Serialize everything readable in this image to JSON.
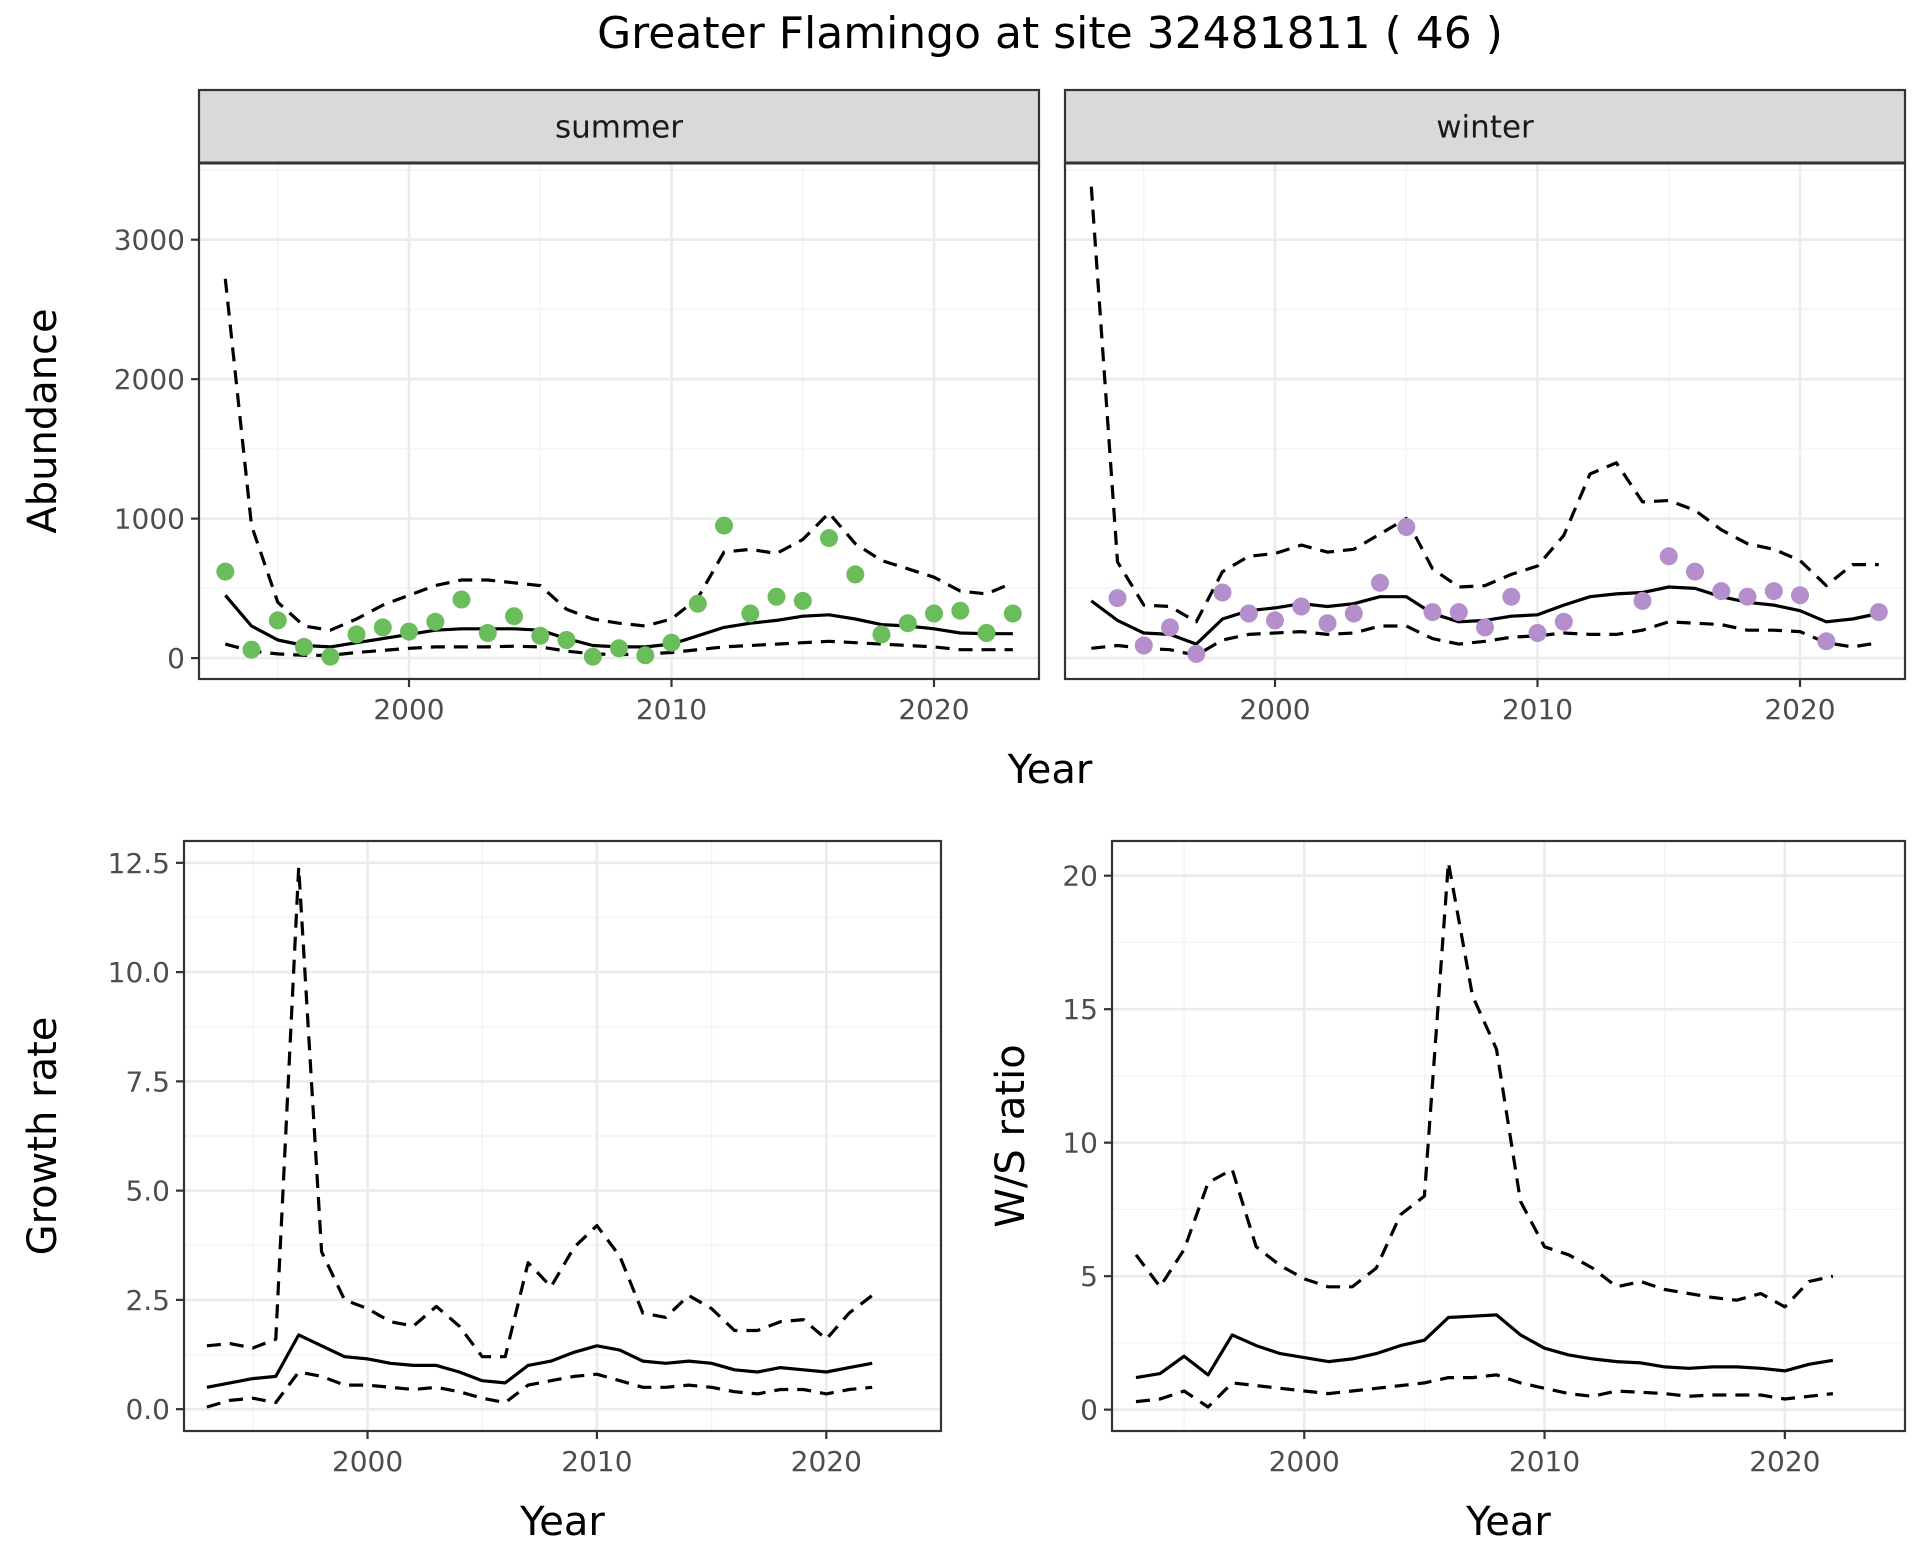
{
  "title": "Greater Flamingo at site 32481811 ( 46 )",
  "colors": {
    "summer": "#6abd5a",
    "winter": "#b48fcb",
    "strip_bg": "#d9d9d9"
  },
  "chart_data": [
    {
      "type": "line",
      "panel": "summer",
      "strip_label": "summer",
      "xlabel": "Year",
      "ylabel": "Abundance",
      "xlim": [
        1992,
        2024
      ],
      "ylim": [
        -150,
        3550
      ],
      "xticks": [
        2000,
        2010,
        2020
      ],
      "yticks": [
        0,
        1000,
        2000,
        3000
      ],
      "x": [
        1993,
        1994,
        1995,
        1996,
        1997,
        1998,
        1999,
        2000,
        2001,
        2002,
        2003,
        2004,
        2005,
        2006,
        2007,
        2008,
        2009,
        2010,
        2011,
        2012,
        2013,
        2014,
        2015,
        2016,
        2017,
        2018,
        2019,
        2020,
        2021,
        2022,
        2023
      ],
      "series": [
        {
          "role": "estimate",
          "values": [
            450,
            230,
            130,
            90,
            80,
            110,
            140,
            170,
            200,
            210,
            210,
            210,
            200,
            140,
            90,
            80,
            80,
            100,
            160,
            220,
            250,
            270,
            300,
            310,
            280,
            240,
            230,
            210,
            180,
            175,
            175
          ]
        },
        {
          "role": "upper",
          "values": [
            2720,
            950,
            400,
            230,
            200,
            280,
            380,
            450,
            520,
            560,
            560,
            540,
            520,
            350,
            280,
            250,
            230,
            280,
            430,
            760,
            780,
            750,
            850,
            1040,
            820,
            700,
            640,
            580,
            480,
            460,
            540
          ]
        },
        {
          "role": "lower",
          "values": [
            100,
            50,
            30,
            20,
            20,
            40,
            55,
            70,
            80,
            80,
            80,
            85,
            80,
            50,
            30,
            25,
            30,
            40,
            60,
            80,
            90,
            100,
            110,
            120,
            110,
            100,
            90,
            80,
            60,
            60,
            60
          ]
        },
        {
          "role": "observed",
          "points": [
            [
              1993,
              620
            ],
            [
              1994,
              60
            ],
            [
              1995,
              270
            ],
            [
              1996,
              80
            ],
            [
              1997,
              10
            ],
            [
              1998,
              170
            ],
            [
              1999,
              220
            ],
            [
              2000,
              190
            ],
            [
              2001,
              260
            ],
            [
              2002,
              420
            ],
            [
              2003,
              180
            ],
            [
              2004,
              300
            ],
            [
              2005,
              160
            ],
            [
              2006,
              130
            ],
            [
              2007,
              10
            ],
            [
              2008,
              70
            ],
            [
              2009,
              20
            ],
            [
              2010,
              110
            ],
            [
              2011,
              390
            ],
            [
              2012,
              950
            ],
            [
              2013,
              320
            ],
            [
              2014,
              440
            ],
            [
              2015,
              410
            ],
            [
              2016,
              860
            ],
            [
              2017,
              600
            ],
            [
              2018,
              170
            ],
            [
              2019,
              250
            ],
            [
              2020,
              320
            ],
            [
              2021,
              340
            ],
            [
              2022,
              180
            ],
            [
              2023,
              320
            ]
          ]
        }
      ]
    },
    {
      "type": "line",
      "panel": "winter",
      "strip_label": "winter",
      "xlabel": "Year",
      "ylabel": "Abundance",
      "xlim": [
        1992,
        2024
      ],
      "ylim": [
        -150,
        3550
      ],
      "xticks": [
        2000,
        2010,
        2020
      ],
      "yticks": [
        0,
        1000,
        2000,
        3000
      ],
      "x": [
        1993,
        1994,
        1995,
        1996,
        1997,
        1998,
        1999,
        2000,
        2001,
        2002,
        2003,
        2004,
        2005,
        2006,
        2007,
        2008,
        2009,
        2010,
        2011,
        2012,
        2013,
        2014,
        2015,
        2016,
        2017,
        2018,
        2019,
        2020,
        2021,
        2022,
        2023
      ],
      "series": [
        {
          "role": "estimate",
          "values": [
            410,
            270,
            180,
            170,
            100,
            280,
            340,
            360,
            390,
            370,
            390,
            440,
            440,
            320,
            260,
            270,
            300,
            310,
            380,
            440,
            460,
            470,
            510,
            500,
            440,
            400,
            380,
            340,
            260,
            280,
            320
          ]
        },
        {
          "role": "upper",
          "values": [
            3380,
            690,
            380,
            370,
            260,
            620,
            730,
            750,
            810,
            760,
            780,
            890,
            1000,
            640,
            510,
            520,
            600,
            660,
            880,
            1320,
            1400,
            1120,
            1130,
            1060,
            920,
            820,
            780,
            700,
            520,
            670,
            670
          ]
        },
        {
          "role": "lower",
          "values": [
            70,
            90,
            70,
            60,
            20,
            130,
            170,
            180,
            190,
            170,
            180,
            230,
            230,
            140,
            100,
            120,
            150,
            160,
            180,
            170,
            170,
            200,
            260,
            250,
            240,
            200,
            200,
            190,
            110,
            80,
            110
          ]
        },
        {
          "role": "observed",
          "points": [
            [
              1994,
              430
            ],
            [
              1995,
              90
            ],
            [
              1996,
              220
            ],
            [
              1997,
              30
            ],
            [
              1998,
              470
            ],
            [
              1999,
              320
            ],
            [
              2000,
              270
            ],
            [
              2001,
              370
            ],
            [
              2002,
              250
            ],
            [
              2003,
              320
            ],
            [
              2004,
              540
            ],
            [
              2005,
              940
            ],
            [
              2006,
              330
            ],
            [
              2007,
              330
            ],
            [
              2008,
              220
            ],
            [
              2009,
              440
            ],
            [
              2010,
              180
            ],
            [
              2011,
              260
            ],
            [
              2014,
              410
            ],
            [
              2015,
              730
            ],
            [
              2016,
              620
            ],
            [
              2017,
              480
            ],
            [
              2018,
              440
            ],
            [
              2019,
              480
            ],
            [
              2020,
              450
            ],
            [
              2021,
              120
            ],
            [
              2023,
              330
            ]
          ]
        }
      ]
    },
    {
      "type": "line",
      "panel": "growth",
      "xlabel": "Year",
      "ylabel": "Growth rate",
      "xlim": [
        1992,
        2025
      ],
      "ylim": [
        -0.5,
        13.0
      ],
      "xticks": [
        2000,
        2010,
        2020
      ],
      "yticks": [
        0.0,
        2.5,
        5.0,
        7.5,
        10.0,
        12.5
      ],
      "ytick_labels": [
        "0.0",
        "2.5",
        "5.0",
        "7.5",
        "10.0",
        "12.5"
      ],
      "x": [
        1993,
        1994,
        1995,
        1996,
        1997,
        1998,
        1999,
        2000,
        2001,
        2002,
        2003,
        2004,
        2005,
        2006,
        2007,
        2008,
        2009,
        2010,
        2011,
        2012,
        2013,
        2014,
        2015,
        2016,
        2017,
        2018,
        2019,
        2020,
        2021,
        2022
      ],
      "series": [
        {
          "role": "estimate",
          "values": [
            0.5,
            0.6,
            0.7,
            0.75,
            1.7,
            1.45,
            1.2,
            1.15,
            1.05,
            1.0,
            1.0,
            0.85,
            0.65,
            0.6,
            1.0,
            1.1,
            1.3,
            1.45,
            1.35,
            1.1,
            1.05,
            1.1,
            1.05,
            0.9,
            0.85,
            0.95,
            0.9,
            0.85,
            0.95,
            1.05
          ]
        },
        {
          "role": "upper",
          "values": [
            1.45,
            1.5,
            1.4,
            1.6,
            12.4,
            3.6,
            2.5,
            2.3,
            2.0,
            1.9,
            2.35,
            1.9,
            1.2,
            1.2,
            3.35,
            2.8,
            3.7,
            4.2,
            3.5,
            2.2,
            2.1,
            2.6,
            2.3,
            1.8,
            1.8,
            2.0,
            2.05,
            1.6,
            2.2,
            2.6
          ]
        },
        {
          "role": "lower",
          "values": [
            0.05,
            0.2,
            0.25,
            0.15,
            0.85,
            0.75,
            0.55,
            0.55,
            0.5,
            0.45,
            0.5,
            0.4,
            0.25,
            0.15,
            0.55,
            0.65,
            0.75,
            0.8,
            0.65,
            0.5,
            0.5,
            0.55,
            0.5,
            0.4,
            0.35,
            0.45,
            0.45,
            0.35,
            0.45,
            0.5
          ]
        }
      ]
    },
    {
      "type": "line",
      "panel": "ratio",
      "xlabel": "Year",
      "ylabel": "W/S ratio",
      "xlim": [
        1992,
        2025
      ],
      "ylim": [
        -0.8,
        21.3
      ],
      "xticks": [
        2000,
        2010,
        2020
      ],
      "yticks": [
        0,
        5,
        10,
        15,
        20
      ],
      "ytick_labels": [
        "0",
        "5",
        "10",
        "15",
        "20"
      ],
      "x": [
        1993,
        1994,
        1995,
        1996,
        1997,
        1998,
        1999,
        2000,
        2001,
        2002,
        2003,
        2004,
        2005,
        2006,
        2007,
        2008,
        2009,
        2010,
        2011,
        2012,
        2013,
        2014,
        2015,
        2016,
        2017,
        2018,
        2019,
        2020,
        2021,
        2022
      ],
      "series": [
        {
          "role": "estimate",
          "values": [
            1.2,
            1.35,
            2.0,
            1.3,
            2.8,
            2.4,
            2.1,
            1.95,
            1.8,
            1.9,
            2.1,
            2.4,
            2.6,
            3.45,
            3.5,
            3.55,
            2.8,
            2.3,
            2.05,
            1.9,
            1.8,
            1.75,
            1.6,
            1.55,
            1.6,
            1.6,
            1.55,
            1.45,
            1.7,
            1.85
          ]
        },
        {
          "role": "upper",
          "values": [
            5.8,
            4.6,
            6.0,
            8.5,
            9.0,
            6.1,
            5.4,
            4.9,
            4.6,
            4.6,
            5.3,
            7.3,
            8.0,
            20.5,
            15.5,
            13.5,
            7.8,
            6.1,
            5.8,
            5.3,
            4.6,
            4.8,
            4.5,
            4.35,
            4.2,
            4.1,
            4.35,
            3.85,
            4.8,
            5.0
          ]
        },
        {
          "role": "lower",
          "values": [
            0.3,
            0.4,
            0.7,
            0.1,
            1.0,
            0.9,
            0.8,
            0.7,
            0.6,
            0.7,
            0.8,
            0.9,
            1.0,
            1.2,
            1.2,
            1.3,
            1.0,
            0.8,
            0.6,
            0.5,
            0.7,
            0.65,
            0.6,
            0.5,
            0.55,
            0.55,
            0.55,
            0.4,
            0.5,
            0.6
          ]
        }
      ]
    }
  ]
}
